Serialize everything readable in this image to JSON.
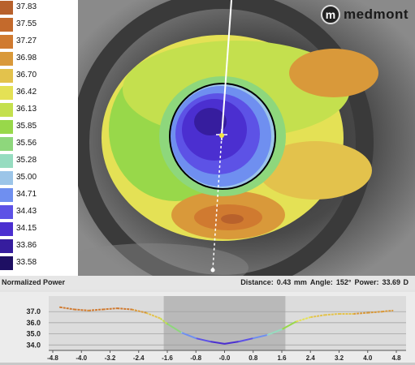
{
  "legend": {
    "items": [
      {
        "value": "37.83",
        "color": "#b8612c"
      },
      {
        "value": "37.55",
        "color": "#c46a2c"
      },
      {
        "value": "37.27",
        "color": "#d07a30"
      },
      {
        "value": "36.98",
        "color": "#d9993a"
      },
      {
        "value": "36.70",
        "color": "#e3c24c"
      },
      {
        "value": "36.42",
        "color": "#e4e155"
      },
      {
        "value": "36.13",
        "color": "#c4e04e"
      },
      {
        "value": "35.85",
        "color": "#98d84a"
      },
      {
        "value": "35.56",
        "color": "#8ed77c"
      },
      {
        "value": "35.28",
        "color": "#96dcc0"
      },
      {
        "value": "35.00",
        "color": "#9cc5e8"
      },
      {
        "value": "34.71",
        "color": "#6f8ff0"
      },
      {
        "value": "34.43",
        "color": "#5d52e6"
      },
      {
        "value": "34.15",
        "color": "#4b2fd0"
      },
      {
        "value": "33.86",
        "color": "#361d9e"
      },
      {
        "value": "33.58",
        "color": "#1e0f63"
      }
    ]
  },
  "logo": {
    "mark": "m",
    "text": "medmont"
  },
  "status": {
    "map_title": "Normalized Power",
    "distance_label": "Distance:",
    "distance_value": "0.43 mm",
    "angle_label": "Angle:",
    "angle_value": "152°",
    "power_label": "Power:",
    "power_value": "33.69 D"
  },
  "profile": {
    "y_ticks": [
      "37.0",
      "36.0",
      "35.0",
      "34.0"
    ],
    "x_ticks": [
      "-4.8",
      "-4.0",
      "-3.2",
      "-2.4",
      "-1.6",
      "-0.8",
      "-0.0",
      "0.8",
      "1.6",
      "2.4",
      "3.2",
      "4.0",
      "4.8"
    ]
  },
  "chart_data": {
    "type": "line",
    "xlim": [
      -4.8,
      4.8
    ],
    "ylim": [
      33.8,
      37.6
    ],
    "x": [
      -4.6,
      -4.2,
      -3.8,
      -3.4,
      -3.0,
      -2.6,
      -2.2,
      -1.8,
      -1.6,
      -1.2,
      -0.8,
      -0.4,
      -0.0,
      0.4,
      0.8,
      1.2,
      1.6,
      2.0,
      2.4,
      2.8,
      3.2,
      3.6,
      4.0,
      4.4,
      4.7
    ],
    "y": [
      37.4,
      37.2,
      37.1,
      37.2,
      37.3,
      37.2,
      36.9,
      36.4,
      35.9,
      35.1,
      34.6,
      34.3,
      34.1,
      34.3,
      34.6,
      34.9,
      35.4,
      36.1,
      36.5,
      36.7,
      36.8,
      36.8,
      36.9,
      37.0,
      37.1
    ],
    "highlight_range": [
      -1.7,
      1.7
    ]
  },
  "colors": {
    "chord": "#ffffff",
    "pupil": "#000000",
    "marker": "#f2e640"
  }
}
